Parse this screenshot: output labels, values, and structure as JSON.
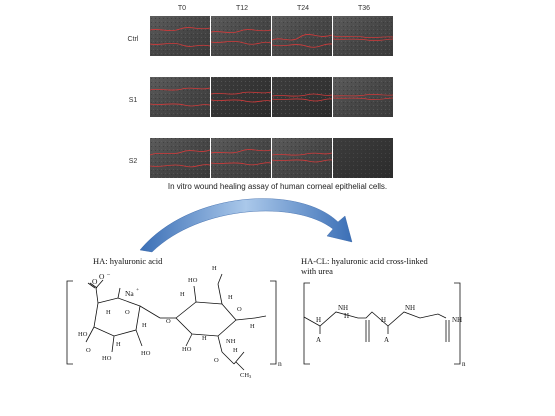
{
  "assay": {
    "columns": [
      "T0",
      "T12",
      "T24",
      "T36"
    ],
    "rows": [
      "Ctrl",
      "S1",
      "S2"
    ],
    "caption": "In vitro wound healing assay of human corneal epithelial cells."
  },
  "arrow": {
    "color_light": "#aac8ea",
    "color_dark": "#3b6fb6"
  },
  "ha": {
    "title": "HA: hyaluronic acid",
    "labels": {
      "na": "Na",
      "na_charge": "+",
      "o_minus": "O",
      "minus": "–",
      "n": "n"
    }
  },
  "hacl": {
    "title_line1": "HA-CL: hyaluronic acid cross-linked",
    "title_line2": "with urea",
    "labels": {
      "a": "A",
      "nh": "NH",
      "h": "H",
      "n": "n"
    }
  }
}
